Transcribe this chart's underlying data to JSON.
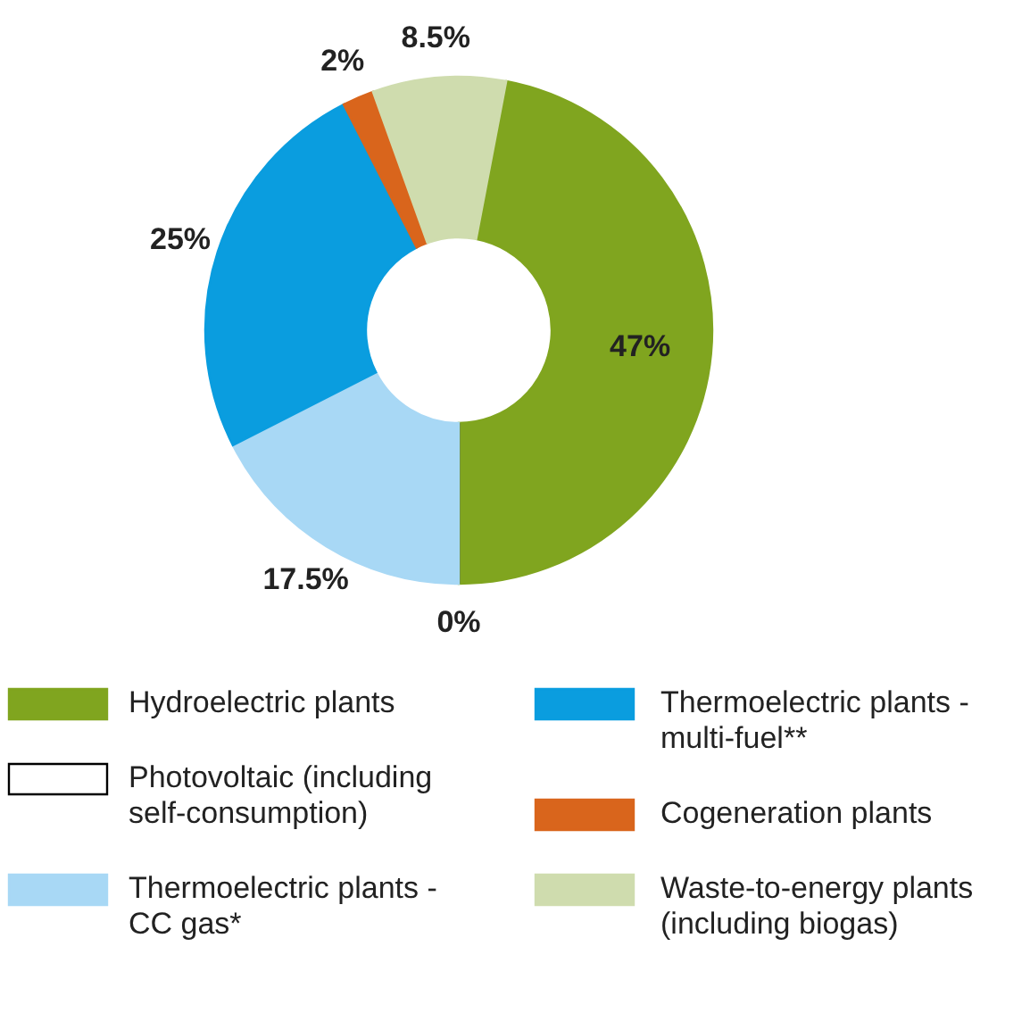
{
  "chart_data": {
    "type": "donut",
    "categories": [
      "Hydroelectric plants",
      "Photovoltaic (including self-consumption)",
      "Thermoelectric plants - CC gas*",
      "Thermoelectric plants - multi-fuel**",
      "Cogeneration plants",
      "Waste-to-energy plants (including biogas)"
    ],
    "values": [
      47,
      0,
      17.5,
      25,
      2,
      8.5
    ],
    "colors": [
      "#80a51f",
      "#ffffff",
      "#a8d8f5",
      "#0a9ddf",
      "#d9651c",
      "#cfdcae"
    ],
    "value_labels": [
      "47%",
      "0%",
      "17.5%",
      "25%",
      "2%",
      "8.5%"
    ],
    "legend": "bottom"
  }
}
